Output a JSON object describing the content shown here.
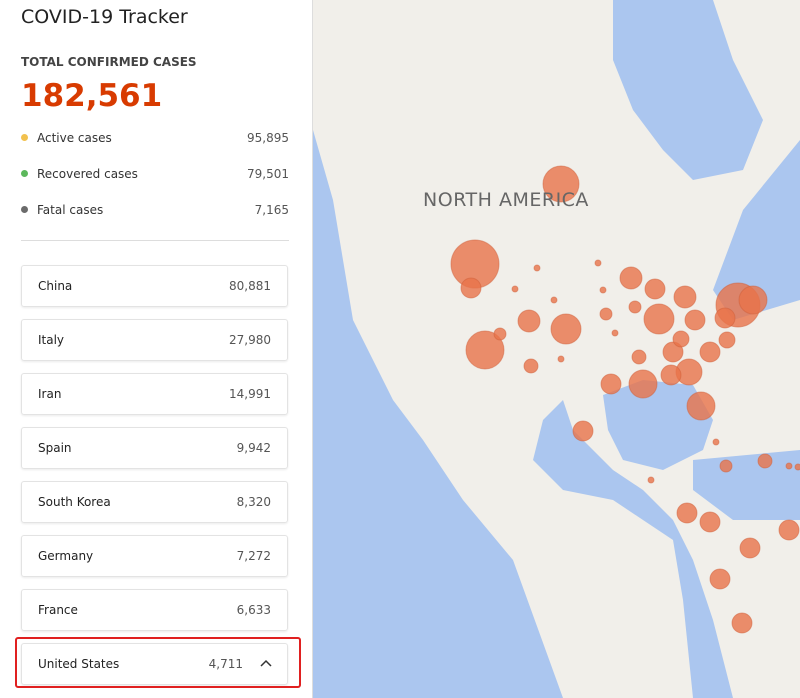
{
  "header": {
    "title": "COVID-19 Tracker"
  },
  "summary": {
    "label": "TOTAL CONFIRMED CASES",
    "total": "182,561",
    "stats": [
      {
        "label": "Active cases",
        "value": "95,895",
        "color": "#f2c14e"
      },
      {
        "label": "Recovered cases",
        "value": "79,501",
        "color": "#5cb85c"
      },
      {
        "label": "Fatal cases",
        "value": "7,165",
        "color": "#6b6b6b"
      }
    ]
  },
  "countries": [
    {
      "name": "China",
      "value": "80,881"
    },
    {
      "name": "Italy",
      "value": "27,980"
    },
    {
      "name": "Iran",
      "value": "14,991"
    },
    {
      "name": "Spain",
      "value": "9,942"
    },
    {
      "name": "South Korea",
      "value": "8,320"
    },
    {
      "name": "Germany",
      "value": "7,272"
    },
    {
      "name": "France",
      "value": "6,633"
    },
    {
      "name": "United States",
      "value": "4,711"
    }
  ],
  "map": {
    "region_label": "NORTH AMERICA"
  }
}
